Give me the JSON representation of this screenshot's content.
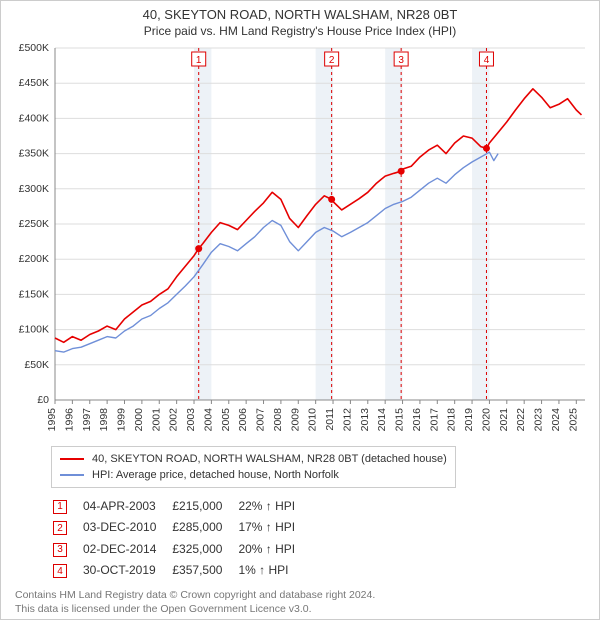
{
  "title": "40, SKEYTON ROAD, NORTH WALSHAM, NR28 0BT",
  "subtitle": "Price paid vs. HM Land Registry's House Price Index (HPI)",
  "chart": {
    "type": "line",
    "plot_bg": "#ffffff",
    "axis_color": "#888888",
    "grid_color": "#dddddd",
    "band_color": "#edf2f7",
    "marker_dash_color": "#dd0000",
    "marker_box_border": "#dd0000",
    "marker_box_text": "#dd0000",
    "label_fontsize": 10.5,
    "band_years": [
      2003,
      2010,
      2014,
      2019
    ],
    "x_years": [
      1995,
      1996,
      1997,
      1998,
      1999,
      2000,
      2001,
      2002,
      2003,
      2004,
      2005,
      2006,
      2007,
      2008,
      2009,
      2010,
      2011,
      2012,
      2013,
      2014,
      2015,
      2016,
      2017,
      2018,
      2019,
      2020,
      2021,
      2022,
      2023,
      2024,
      2025
    ],
    "xlim": [
      1995,
      2025.5
    ],
    "ylim": [
      0,
      500000
    ],
    "ytick_step": 50000,
    "yticks": [
      "£0",
      "£50K",
      "£100K",
      "£150K",
      "£200K",
      "£250K",
      "£300K",
      "£350K",
      "£400K",
      "£450K",
      "£500K"
    ],
    "series": [
      {
        "name": "40, SKEYTON ROAD, NORTH WALSHAM, NR28 0BT (detached house)",
        "color": "#e60000",
        "width": 1.6,
        "xy": [
          [
            1995.0,
            88000
          ],
          [
            1995.5,
            82000
          ],
          [
            1996.0,
            90000
          ],
          [
            1996.5,
            85000
          ],
          [
            1997.0,
            93000
          ],
          [
            1997.5,
            98000
          ],
          [
            1998.0,
            105000
          ],
          [
            1998.5,
            100000
          ],
          [
            1999.0,
            115000
          ],
          [
            1999.5,
            125000
          ],
          [
            2000.0,
            135000
          ],
          [
            2000.5,
            140000
          ],
          [
            2001.0,
            150000
          ],
          [
            2001.5,
            158000
          ],
          [
            2002.0,
            175000
          ],
          [
            2002.5,
            190000
          ],
          [
            2003.0,
            205000
          ],
          [
            2003.27,
            215000
          ],
          [
            2003.5,
            222000
          ],
          [
            2004.0,
            238000
          ],
          [
            2004.5,
            252000
          ],
          [
            2005.0,
            248000
          ],
          [
            2005.5,
            242000
          ],
          [
            2006.0,
            255000
          ],
          [
            2006.5,
            268000
          ],
          [
            2007.0,
            280000
          ],
          [
            2007.5,
            295000
          ],
          [
            2008.0,
            285000
          ],
          [
            2008.5,
            258000
          ],
          [
            2009.0,
            245000
          ],
          [
            2009.5,
            262000
          ],
          [
            2010.0,
            278000
          ],
          [
            2010.5,
            290000
          ],
          [
            2010.92,
            285000
          ],
          [
            2011.0,
            282000
          ],
          [
            2011.5,
            270000
          ],
          [
            2012.0,
            278000
          ],
          [
            2012.5,
            286000
          ],
          [
            2013.0,
            295000
          ],
          [
            2013.5,
            308000
          ],
          [
            2014.0,
            318000
          ],
          [
            2014.5,
            322000
          ],
          [
            2014.92,
            325000
          ],
          [
            2015.0,
            328000
          ],
          [
            2015.5,
            332000
          ],
          [
            2016.0,
            345000
          ],
          [
            2016.5,
            355000
          ],
          [
            2017.0,
            362000
          ],
          [
            2017.5,
            350000
          ],
          [
            2018.0,
            365000
          ],
          [
            2018.5,
            375000
          ],
          [
            2019.0,
            372000
          ],
          [
            2019.5,
            360000
          ],
          [
            2019.83,
            357500
          ],
          [
            2020.0,
            365000
          ],
          [
            2020.5,
            380000
          ],
          [
            2021.0,
            395000
          ],
          [
            2021.5,
            412000
          ],
          [
            2022.0,
            428000
          ],
          [
            2022.5,
            442000
          ],
          [
            2023.0,
            430000
          ],
          [
            2023.5,
            415000
          ],
          [
            2024.0,
            420000
          ],
          [
            2024.5,
            428000
          ],
          [
            2025.0,
            412000
          ],
          [
            2025.3,
            405000
          ]
        ]
      },
      {
        "name": "HPI: Average price, detached house, North Norfolk",
        "color": "#6f8fd8",
        "width": 1.4,
        "xy": [
          [
            1995.0,
            70000
          ],
          [
            1995.5,
            68000
          ],
          [
            1996.0,
            73000
          ],
          [
            1996.5,
            75000
          ],
          [
            1997.0,
            80000
          ],
          [
            1997.5,
            85000
          ],
          [
            1998.0,
            90000
          ],
          [
            1998.5,
            88000
          ],
          [
            1999.0,
            98000
          ],
          [
            1999.5,
            105000
          ],
          [
            2000.0,
            115000
          ],
          [
            2000.5,
            120000
          ],
          [
            2001.0,
            130000
          ],
          [
            2001.5,
            138000
          ],
          [
            2002.0,
            150000
          ],
          [
            2002.5,
            162000
          ],
          [
            2003.0,
            175000
          ],
          [
            2003.5,
            192000
          ],
          [
            2004.0,
            210000
          ],
          [
            2004.5,
            222000
          ],
          [
            2005.0,
            218000
          ],
          [
            2005.5,
            212000
          ],
          [
            2006.0,
            222000
          ],
          [
            2006.5,
            232000
          ],
          [
            2007.0,
            245000
          ],
          [
            2007.5,
            255000
          ],
          [
            2008.0,
            248000
          ],
          [
            2008.5,
            225000
          ],
          [
            2009.0,
            212000
          ],
          [
            2009.5,
            225000
          ],
          [
            2010.0,
            238000
          ],
          [
            2010.5,
            245000
          ],
          [
            2011.0,
            240000
          ],
          [
            2011.5,
            232000
          ],
          [
            2012.0,
            238000
          ],
          [
            2012.5,
            245000
          ],
          [
            2013.0,
            252000
          ],
          [
            2013.5,
            262000
          ],
          [
            2014.0,
            272000
          ],
          [
            2014.5,
            278000
          ],
          [
            2015.0,
            282000
          ],
          [
            2015.5,
            288000
          ],
          [
            2016.0,
            298000
          ],
          [
            2016.5,
            308000
          ],
          [
            2017.0,
            315000
          ],
          [
            2017.5,
            308000
          ],
          [
            2018.0,
            320000
          ],
          [
            2018.5,
            330000
          ],
          [
            2019.0,
            338000
          ],
          [
            2019.5,
            345000
          ],
          [
            2020.0,
            352000
          ],
          [
            2020.25,
            340000
          ],
          [
            2020.5,
            350000
          ]
        ]
      }
    ],
    "sale_markers": [
      {
        "n": "1",
        "x": 2003.27,
        "y": 215000
      },
      {
        "n": "2",
        "x": 2010.92,
        "y": 285000
      },
      {
        "n": "3",
        "x": 2014.92,
        "y": 325000
      },
      {
        "n": "4",
        "x": 2019.83,
        "y": 357500
      }
    ]
  },
  "legend": {
    "items": [
      {
        "color": "#e60000",
        "label": "40, SKEYTON ROAD, NORTH WALSHAM, NR28 0BT (detached house)"
      },
      {
        "color": "#6f8fd8",
        "label": "HPI: Average price, detached house, North Norfolk"
      }
    ]
  },
  "sales": [
    {
      "n": "1",
      "date": "04-APR-2003",
      "price": "£215,000",
      "pct": "22%",
      "arrow": "↑",
      "suffix": "HPI"
    },
    {
      "n": "2",
      "date": "03-DEC-2010",
      "price": "£285,000",
      "pct": "17%",
      "arrow": "↑",
      "suffix": "HPI"
    },
    {
      "n": "3",
      "date": "02-DEC-2014",
      "price": "£325,000",
      "pct": "20%",
      "arrow": "↑",
      "suffix": "HPI"
    },
    {
      "n": "4",
      "date": "30-OCT-2019",
      "price": "£357,500",
      "pct": "1%",
      "arrow": "↑",
      "suffix": "HPI"
    }
  ],
  "footer": {
    "line1": "Contains HM Land Registry data © Crown copyright and database right 2024.",
    "line2": "This data is licensed under the Open Government Licence v3.0."
  },
  "colors": {
    "marker_border": "#dd0000",
    "text": "#333333"
  }
}
